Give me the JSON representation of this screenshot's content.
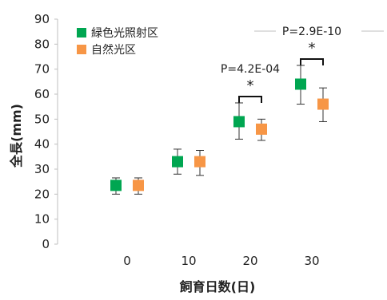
{
  "chart_data": {
    "type": "scatter",
    "title": "",
    "xlabel": "飼育日数(日)",
    "ylabel": "全長(mm)",
    "ylim": [
      0,
      90
    ],
    "yticks": [
      0,
      10,
      20,
      30,
      40,
      50,
      60,
      70,
      80,
      90
    ],
    "xticks": [
      0,
      10,
      20,
      30
    ],
    "grid": false,
    "legend": "top-left",
    "series": [
      {
        "name": "緑色光照射区",
        "color": "#00a651",
        "x": [
          0,
          10,
          20,
          30
        ],
        "y": [
          23.5,
          33,
          49,
          64
        ],
        "err_low": [
          3.5,
          5,
          7,
          8
        ],
        "err_high": [
          3,
          5,
          7.5,
          7.5
        ]
      },
      {
        "name": "自然光区",
        "color": "#f79646",
        "x": [
          0,
          10,
          20,
          30
        ],
        "y": [
          23.5,
          33,
          46,
          56
        ],
        "err_low": [
          3.5,
          5.5,
          4.5,
          7
        ],
        "err_high": [
          3,
          4.5,
          4,
          6.5
        ]
      }
    ],
    "annotations": [
      {
        "group_x": 20,
        "label": "P=4.2E-04",
        "star": "*"
      },
      {
        "group_x": 30,
        "label": "P=2.9E-10",
        "star": "*"
      }
    ]
  }
}
